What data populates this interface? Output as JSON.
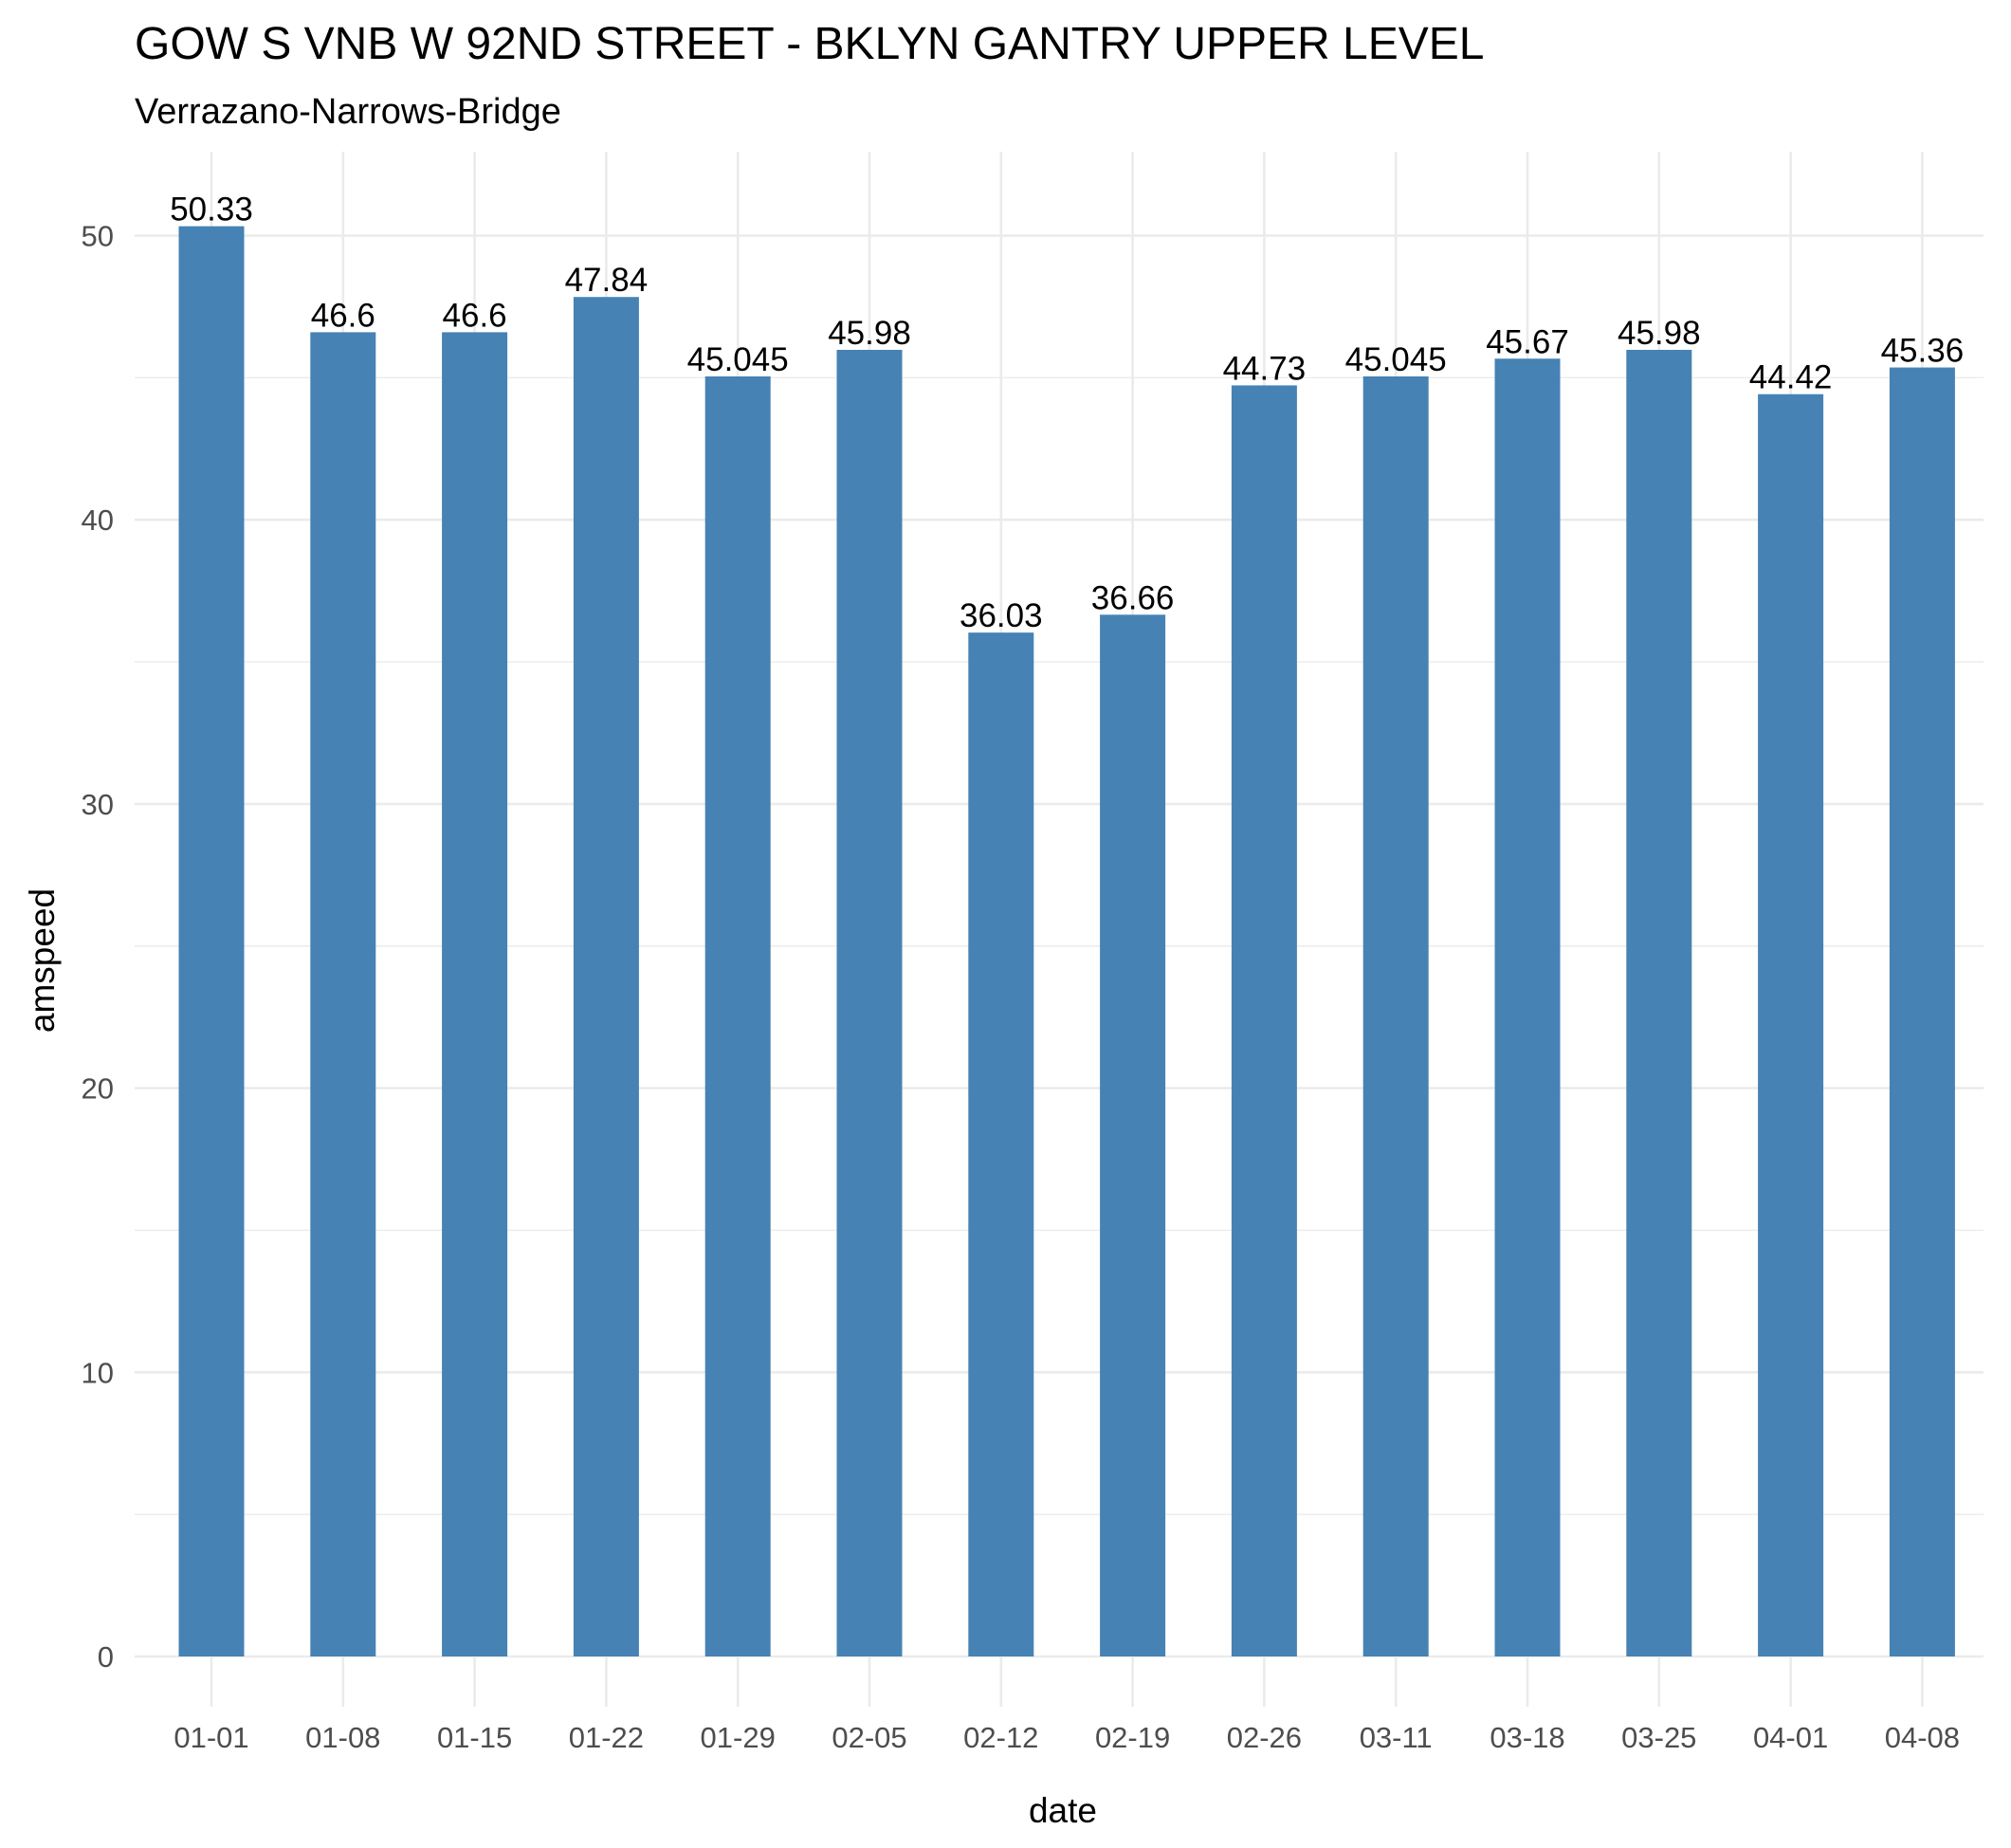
{
  "chart_data": {
    "type": "bar",
    "title": "GOW S VNB W 92ND STREET - BKLYN GANTRY UPPER LEVEL",
    "subtitle": "Verrazano-Narrows-Bridge",
    "xlabel": "date",
    "ylabel": "amspeed",
    "categories": [
      "01-01",
      "01-08",
      "01-15",
      "01-22",
      "01-29",
      "02-05",
      "02-12",
      "02-19",
      "02-26",
      "03-11",
      "03-18",
      "03-25",
      "04-01",
      "04-08"
    ],
    "values": [
      50.33,
      46.6,
      46.6,
      47.84,
      45.045,
      45.98,
      36.03,
      36.66,
      44.73,
      45.045,
      45.67,
      45.98,
      44.42,
      45.36
    ],
    "value_labels": [
      "50.33",
      "46.6",
      "46.6",
      "47.84",
      "45.045",
      "45.98",
      "36.03",
      "36.66",
      "44.73",
      "45.045",
      "45.67",
      "45.98",
      "44.42",
      "45.36"
    ],
    "yticks": [
      0,
      10,
      20,
      30,
      40,
      50
    ],
    "ytick_labels": [
      "0",
      "10",
      "20",
      "30",
      "40",
      "50"
    ],
    "ylim": [
      0,
      52.8
    ],
    "grid": true,
    "legend": "none",
    "bar_color": "#4682b4"
  }
}
